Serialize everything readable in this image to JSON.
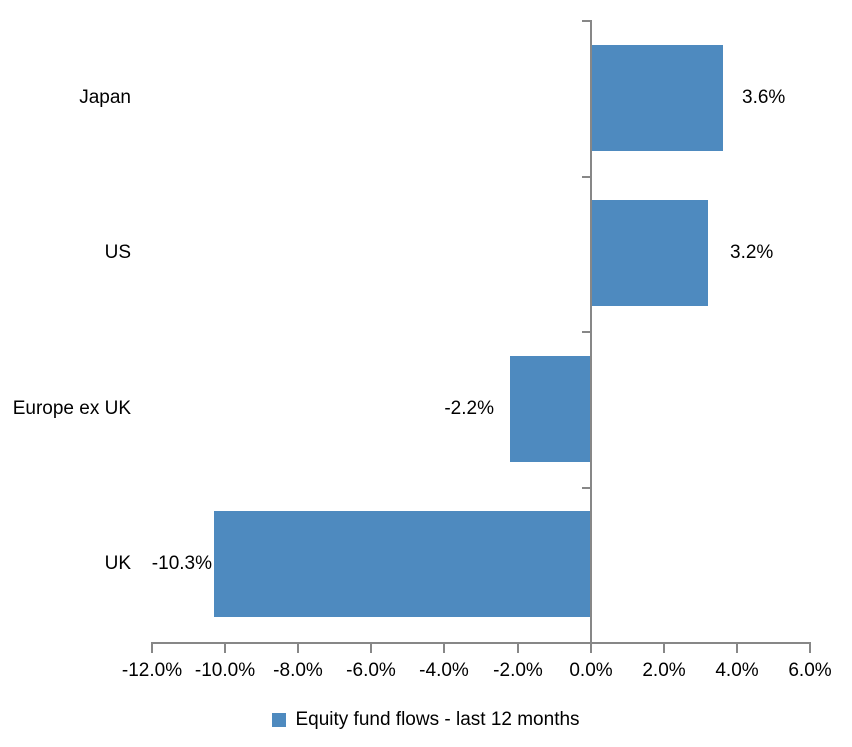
{
  "chart_data": {
    "type": "bar",
    "orientation": "horizontal",
    "title": "",
    "categories": [
      "Japan",
      "US",
      "Europe ex UK",
      "UK"
    ],
    "series": [
      {
        "name": "Equity fund flows - last 12 months",
        "values": [
          3.6,
          3.2,
          -2.2,
          -10.3
        ]
      }
    ],
    "data_labels": [
      "3.6%",
      "3.2%",
      "-2.2%",
      "-10.3%"
    ],
    "xlim": [
      -12,
      6
    ],
    "x_ticks": [
      -12,
      -10,
      -8,
      -6,
      -4,
      -2,
      0,
      2,
      4,
      6
    ],
    "x_tick_labels": [
      "-12.0%",
      "-10.0%",
      "-8.0%",
      "-6.0%",
      "-4.0%",
      "-2.0%",
      "0.0%",
      "2.0%",
      "4.0%",
      "6.0%"
    ],
    "grid": false,
    "legend": {
      "position": "bottom",
      "label": "Equity fund flows - last 12 months"
    },
    "colors": {
      "bar": "#4E8ABF",
      "axis": "#878787",
      "text": "#000000"
    }
  }
}
